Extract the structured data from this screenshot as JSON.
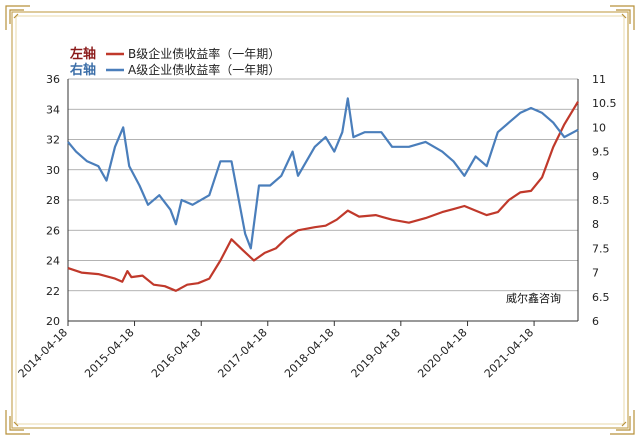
{
  "chart_data": {
    "type": "line",
    "title": "",
    "xlabel": "",
    "ylabel": "",
    "left_tag": "左轴",
    "right_tag": "右轴",
    "watermark": "威尔鑫咨询",
    "x_ticks": [
      "2014-04-18",
      "2015-04-18",
      "2016-04-18",
      "2017-04-18",
      "2018-04-18",
      "2019-04-18",
      "2020-04-18",
      "2021-04-18"
    ],
    "x_range": [
      "2014-04-18",
      "2021-12-15"
    ],
    "y_left": {
      "min": 20,
      "max": 36,
      "ticks": [
        "20",
        "22",
        "24",
        "26",
        "28",
        "30",
        "32",
        "34",
        "36"
      ]
    },
    "y_right": {
      "min": 6,
      "max": 11,
      "ticks": [
        "6",
        "6.5",
        "7",
        "7.5",
        "8",
        "8.5",
        "9",
        "9.5",
        "10",
        "10.5",
        "11"
      ]
    },
    "grid": "horizontal",
    "legend_position": "top-left",
    "series": [
      {
        "name": "B级企业债收益率（一年期）",
        "axis": "left",
        "color": "#c0392b",
        "points": [
          [
            "2014-04-18",
            23.5
          ],
          [
            "2014-07-01",
            23.2
          ],
          [
            "2014-10-01",
            23.1
          ],
          [
            "2015-01-01",
            22.8
          ],
          [
            "2015-02-10",
            22.6
          ],
          [
            "2015-03-10",
            23.3
          ],
          [
            "2015-04-01",
            22.9
          ],
          [
            "2015-06-01",
            23.0
          ],
          [
            "2015-08-01",
            22.4
          ],
          [
            "2015-10-01",
            22.3
          ],
          [
            "2015-12-01",
            22.0
          ],
          [
            "2016-02-01",
            22.4
          ],
          [
            "2016-04-01",
            22.5
          ],
          [
            "2016-06-01",
            22.8
          ],
          [
            "2016-08-01",
            24.0
          ],
          [
            "2016-10-01",
            25.4
          ],
          [
            "2016-12-01",
            24.7
          ],
          [
            "2017-02-01",
            24.0
          ],
          [
            "2017-04-01",
            24.5
          ],
          [
            "2017-06-01",
            24.8
          ],
          [
            "2017-08-01",
            25.5
          ],
          [
            "2017-10-01",
            26.0
          ],
          [
            "2018-01-01",
            26.2
          ],
          [
            "2018-03-01",
            26.3
          ],
          [
            "2018-05-01",
            26.7
          ],
          [
            "2018-07-01",
            27.3
          ],
          [
            "2018-09-01",
            26.9
          ],
          [
            "2018-12-01",
            27.0
          ],
          [
            "2019-03-01",
            26.7
          ],
          [
            "2019-06-01",
            26.5
          ],
          [
            "2019-09-01",
            26.8
          ],
          [
            "2019-12-01",
            27.2
          ],
          [
            "2020-02-01",
            27.4
          ],
          [
            "2020-04-01",
            27.6
          ],
          [
            "2020-06-01",
            27.3
          ],
          [
            "2020-08-01",
            27.0
          ],
          [
            "2020-10-01",
            27.2
          ],
          [
            "2020-12-01",
            28.0
          ],
          [
            "2021-02-01",
            28.5
          ],
          [
            "2021-04-01",
            28.6
          ],
          [
            "2021-06-01",
            29.5
          ],
          [
            "2021-08-01",
            31.5
          ],
          [
            "2021-10-01",
            33.0
          ],
          [
            "2021-12-15",
            34.5
          ]
        ]
      },
      {
        "name": "A级企业债收益率（一年期）",
        "axis": "right",
        "color": "#4a7ebb",
        "points": [
          [
            "2014-04-18",
            9.7
          ],
          [
            "2014-06-01",
            9.5
          ],
          [
            "2014-08-01",
            9.3
          ],
          [
            "2014-10-01",
            9.2
          ],
          [
            "2014-11-15",
            8.9
          ],
          [
            "2015-01-01",
            9.6
          ],
          [
            "2015-02-15",
            10.0
          ],
          [
            "2015-03-20",
            9.2
          ],
          [
            "2015-05-15",
            8.8
          ],
          [
            "2015-07-01",
            8.4
          ],
          [
            "2015-09-01",
            8.6
          ],
          [
            "2015-11-01",
            8.3
          ],
          [
            "2015-12-01",
            8.0
          ],
          [
            "2016-01-01",
            8.5
          ],
          [
            "2016-03-01",
            8.4
          ],
          [
            "2016-06-01",
            8.6
          ],
          [
            "2016-08-01",
            9.3
          ],
          [
            "2016-10-01",
            9.3
          ],
          [
            "2016-12-15",
            7.8
          ],
          [
            "2017-01-15",
            7.5
          ],
          [
            "2017-03-01",
            8.8
          ],
          [
            "2017-05-01",
            8.8
          ],
          [
            "2017-07-01",
            9.0
          ],
          [
            "2017-09-01",
            9.5
          ],
          [
            "2017-10-01",
            9.0
          ],
          [
            "2018-01-01",
            9.6
          ],
          [
            "2018-03-01",
            9.8
          ],
          [
            "2018-04-18",
            9.5
          ],
          [
            "2018-06-01",
            9.9
          ],
          [
            "2018-07-01",
            10.6
          ],
          [
            "2018-08-01",
            9.8
          ],
          [
            "2018-10-01",
            9.9
          ],
          [
            "2019-01-01",
            9.9
          ],
          [
            "2019-03-01",
            9.6
          ],
          [
            "2019-06-01",
            9.6
          ],
          [
            "2019-09-01",
            9.7
          ],
          [
            "2019-12-01",
            9.5
          ],
          [
            "2020-02-01",
            9.3
          ],
          [
            "2020-04-01",
            9.0
          ],
          [
            "2020-06-01",
            9.4
          ],
          [
            "2020-08-01",
            9.2
          ],
          [
            "2020-10-01",
            9.9
          ],
          [
            "2020-12-01",
            10.1
          ],
          [
            "2021-02-01",
            10.3
          ],
          [
            "2021-04-01",
            10.4
          ],
          [
            "2021-06-01",
            10.3
          ],
          [
            "2021-08-01",
            10.1
          ],
          [
            "2021-10-01",
            9.8
          ],
          [
            "2021-12-15",
            9.95
          ]
        ]
      }
    ]
  }
}
